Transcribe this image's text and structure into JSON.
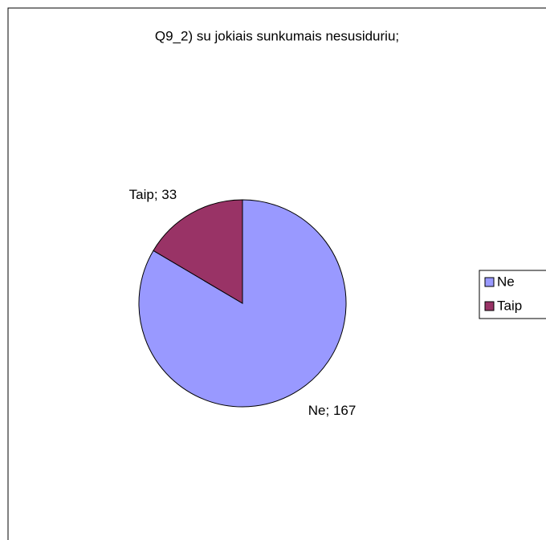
{
  "chart_data": {
    "type": "pie",
    "title": "Q9_2) su jokiais sunkumais nesusiduriu;",
    "categories": [
      "Ne",
      "Taip"
    ],
    "values": [
      167,
      33
    ],
    "value_labels": [
      "Ne; 167",
      "Taip; 33"
    ],
    "colors": [
      "#9999ff",
      "#993366"
    ],
    "legend": "right"
  }
}
